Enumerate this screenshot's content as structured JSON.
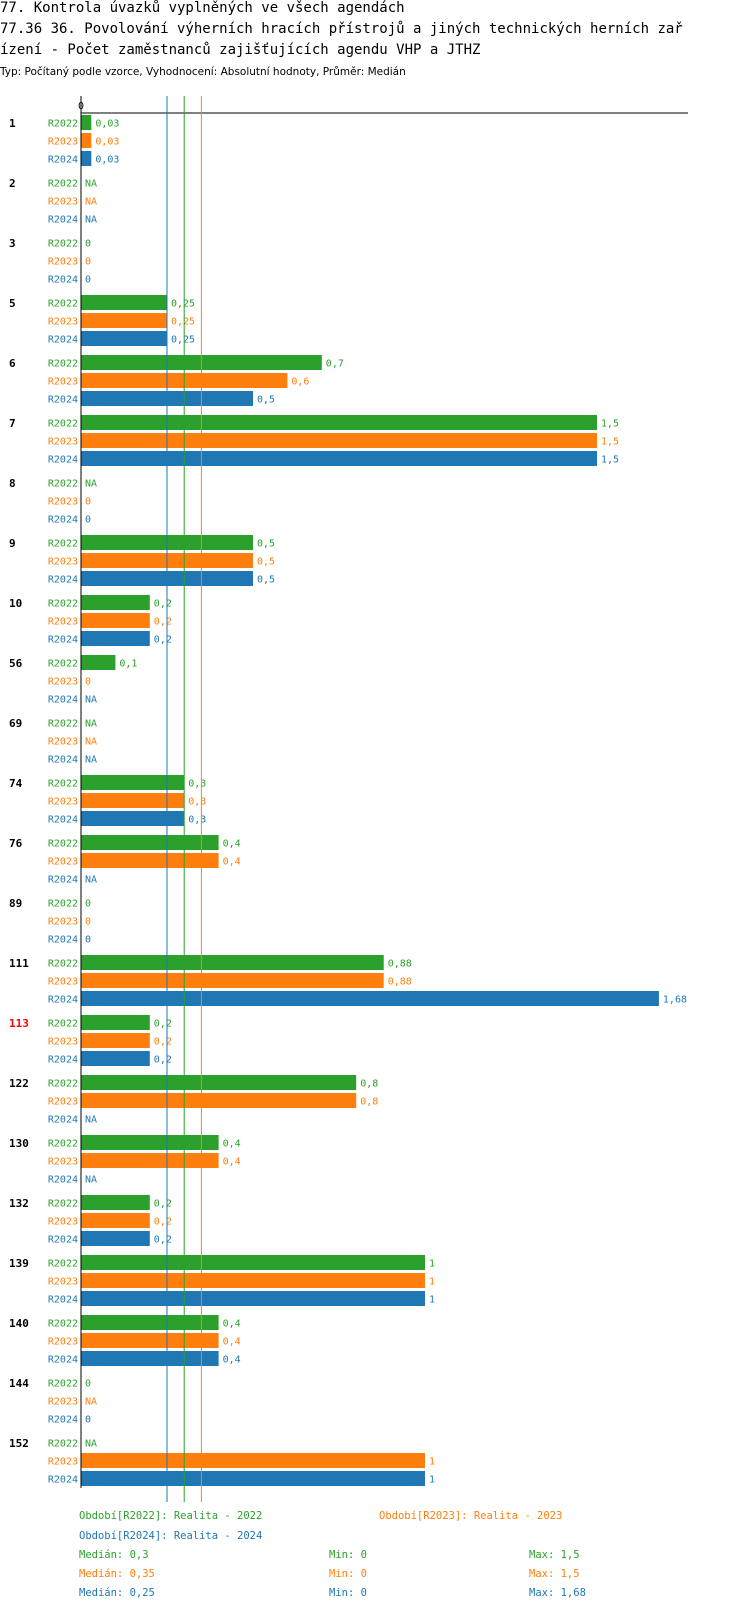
{
  "header": {
    "title_line1": "77. Kontrola úvazků vyplněných ve všech agendách",
    "title_line2": "77.36 36. Povolování výherních hracích přístrojů a jiných technických herních zař",
    "title_line3": "ízení - Počet zaměstnanců zajišťujících agendu VHP a JTHZ",
    "subtitle": "Typ: Počítaný podle vzorce, Vyhodnocení: Absolutní hodnoty, Průměr: Medián"
  },
  "colors": {
    "R2022": "#2ca02c",
    "R2023": "#ff7f0e",
    "R2024": "#1f77b4",
    "highlight": "#ff0000",
    "axis": "#000000"
  },
  "chart_data": {
    "type": "bar",
    "orientation": "horizontal",
    "axis_zero_label": "0",
    "xlim": [
      0,
      1.7
    ],
    "series_names": [
      "R2022",
      "R2023",
      "R2024"
    ],
    "categories": [
      {
        "id": "1",
        "highlight": false,
        "values": [
          0.03,
          0.03,
          0.03
        ],
        "labels": [
          "0,03",
          "0,03",
          "0,03"
        ]
      },
      {
        "id": "2",
        "highlight": false,
        "values": [
          null,
          null,
          null
        ],
        "labels": [
          "NA",
          "NA",
          "NA"
        ]
      },
      {
        "id": "3",
        "highlight": false,
        "values": [
          0,
          0,
          0
        ],
        "labels": [
          "0",
          "0",
          "0"
        ]
      },
      {
        "id": "5",
        "highlight": false,
        "values": [
          0.25,
          0.25,
          0.25
        ],
        "labels": [
          "0,25",
          "0,25",
          "0,25"
        ]
      },
      {
        "id": "6",
        "highlight": false,
        "values": [
          0.7,
          0.6,
          0.5
        ],
        "labels": [
          "0,7",
          "0,6",
          "0,5"
        ]
      },
      {
        "id": "7",
        "highlight": false,
        "values": [
          1.5,
          1.5,
          1.5
        ],
        "labels": [
          "1,5",
          "1,5",
          "1,5"
        ]
      },
      {
        "id": "8",
        "highlight": false,
        "values": [
          null,
          0,
          0
        ],
        "labels": [
          "NA",
          "0",
          "0"
        ]
      },
      {
        "id": "9",
        "highlight": false,
        "values": [
          0.5,
          0.5,
          0.5
        ],
        "labels": [
          "0,5",
          "0,5",
          "0,5"
        ]
      },
      {
        "id": "10",
        "highlight": false,
        "values": [
          0.2,
          0.2,
          0.2
        ],
        "labels": [
          "0,2",
          "0,2",
          "0,2"
        ]
      },
      {
        "id": "56",
        "highlight": false,
        "values": [
          0.1,
          0,
          null
        ],
        "labels": [
          "0,1",
          "0",
          "NA"
        ]
      },
      {
        "id": "69",
        "highlight": false,
        "values": [
          null,
          null,
          null
        ],
        "labels": [
          "NA",
          "NA",
          "NA"
        ]
      },
      {
        "id": "74",
        "highlight": false,
        "values": [
          0.3,
          0.3,
          0.3
        ],
        "labels": [
          "0,3",
          "0,3",
          "0,3"
        ]
      },
      {
        "id": "76",
        "highlight": false,
        "values": [
          0.4,
          0.4,
          null
        ],
        "labels": [
          "0,4",
          "0,4",
          "NA"
        ]
      },
      {
        "id": "89",
        "highlight": false,
        "values": [
          0,
          0,
          0
        ],
        "labels": [
          "0",
          "0",
          "0"
        ]
      },
      {
        "id": "111",
        "highlight": false,
        "values": [
          0.88,
          0.88,
          1.68
        ],
        "labels": [
          "0,88",
          "0,88",
          "1,68"
        ]
      },
      {
        "id": "113",
        "highlight": true,
        "values": [
          0.2,
          0.2,
          0.2
        ],
        "labels": [
          "0,2",
          "0,2",
          "0,2"
        ]
      },
      {
        "id": "122",
        "highlight": false,
        "values": [
          0.8,
          0.8,
          null
        ],
        "labels": [
          "0,8",
          "0,8",
          "NA"
        ]
      },
      {
        "id": "130",
        "highlight": false,
        "values": [
          0.4,
          0.4,
          null
        ],
        "labels": [
          "0,4",
          "0,4",
          "NA"
        ]
      },
      {
        "id": "132",
        "highlight": false,
        "values": [
          0.2,
          0.2,
          0.2
        ],
        "labels": [
          "0,2",
          "0,2",
          "0,2"
        ]
      },
      {
        "id": "139",
        "highlight": false,
        "values": [
          1,
          1,
          1
        ],
        "labels": [
          "1",
          "1",
          "1"
        ]
      },
      {
        "id": "140",
        "highlight": false,
        "values": [
          0.4,
          0.4,
          0.4
        ],
        "labels": [
          "0,4",
          "0,4",
          "0,4"
        ]
      },
      {
        "id": "144",
        "highlight": false,
        "values": [
          0,
          null,
          0
        ],
        "labels": [
          "0",
          "NA",
          "0"
        ]
      },
      {
        "id": "152",
        "highlight": false,
        "values": [
          null,
          1,
          1
        ],
        "labels": [
          "NA",
          "1",
          "1"
        ]
      }
    ],
    "median_lines": [
      {
        "series": "R2022",
        "value": 0.3
      },
      {
        "series": "R2023",
        "value": 0.35
      },
      {
        "series": "R2024",
        "value": 0.25
      }
    ],
    "legend": [
      {
        "series": "R2022",
        "text": "Období[R2022]: Realita - 2022"
      },
      {
        "series": "R2023",
        "text": "Období[R2023]: Realita - 2023"
      },
      {
        "series": "R2024",
        "text": "Období[R2024]: Realita - 2024"
      }
    ],
    "stats": [
      {
        "series": "R2022",
        "median": "Medián: 0,3",
        "min": "Min: 0",
        "max": "Max: 1,5"
      },
      {
        "series": "R2023",
        "median": "Medián: 0,35",
        "min": "Min: 0",
        "max": "Max: 1,5"
      },
      {
        "series": "R2024",
        "median": "Medián: 0,25",
        "min": "Min: 0",
        "max": "Max: 1,68"
      }
    ]
  }
}
